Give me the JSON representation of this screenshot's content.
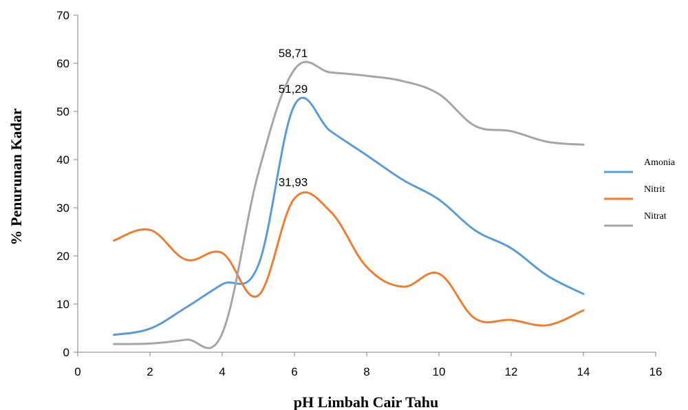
{
  "chart_data": {
    "type": "line",
    "xlabel": "pH Limbah Cair Tahu",
    "ylabel": "% Penurunan Kadar",
    "xlim": [
      0,
      16
    ],
    "ylim": [
      0,
      70
    ],
    "xticks": [
      0,
      2,
      4,
      6,
      8,
      10,
      12,
      14,
      16
    ],
    "yticks": [
      0,
      10,
      20,
      30,
      40,
      50,
      60,
      70
    ],
    "grid": false,
    "legend_position": "right",
    "smooth": true,
    "series": [
      {
        "name": "Amonia",
        "color": "#5B9BD5",
        "x": [
          1,
          2,
          3,
          4,
          5,
          6,
          7,
          8,
          9,
          10,
          11,
          12,
          13,
          14
        ],
        "y": [
          3.6,
          4.9,
          9.3,
          14.1,
          18.1,
          51.29,
          45.9,
          40.9,
          35.8,
          31.7,
          25.3,
          21.6,
          15.9,
          12.1
        ]
      },
      {
        "name": "Nitrit",
        "color": "#ED7D31",
        "x": [
          1,
          2,
          3,
          4,
          5,
          6,
          7,
          8,
          9,
          10,
          11,
          12,
          13,
          14
        ],
        "y": [
          23.2,
          25.4,
          19.2,
          20.6,
          11.8,
          31.93,
          29.2,
          17.7,
          13.6,
          16.3,
          7.0,
          6.7,
          5.6,
          8.7
        ]
      },
      {
        "name": "Nitrat",
        "color": "#A5A5A5",
        "x": [
          1,
          2,
          3,
          4,
          5,
          6,
          7,
          8,
          9,
          10,
          11,
          12,
          13,
          14
        ],
        "y": [
          1.7,
          1.8,
          2.6,
          3.9,
          37.2,
          58.71,
          58.1,
          57.4,
          56.3,
          53.6,
          47.0,
          45.9,
          43.7,
          43.1
        ]
      }
    ],
    "data_labels": [
      {
        "series": "Nitrat",
        "x": 6,
        "text": "58,71"
      },
      {
        "series": "Amonia",
        "x": 6,
        "text": "51,29"
      },
      {
        "series": "Nitrit",
        "x": 6,
        "text": "31,93"
      }
    ]
  }
}
